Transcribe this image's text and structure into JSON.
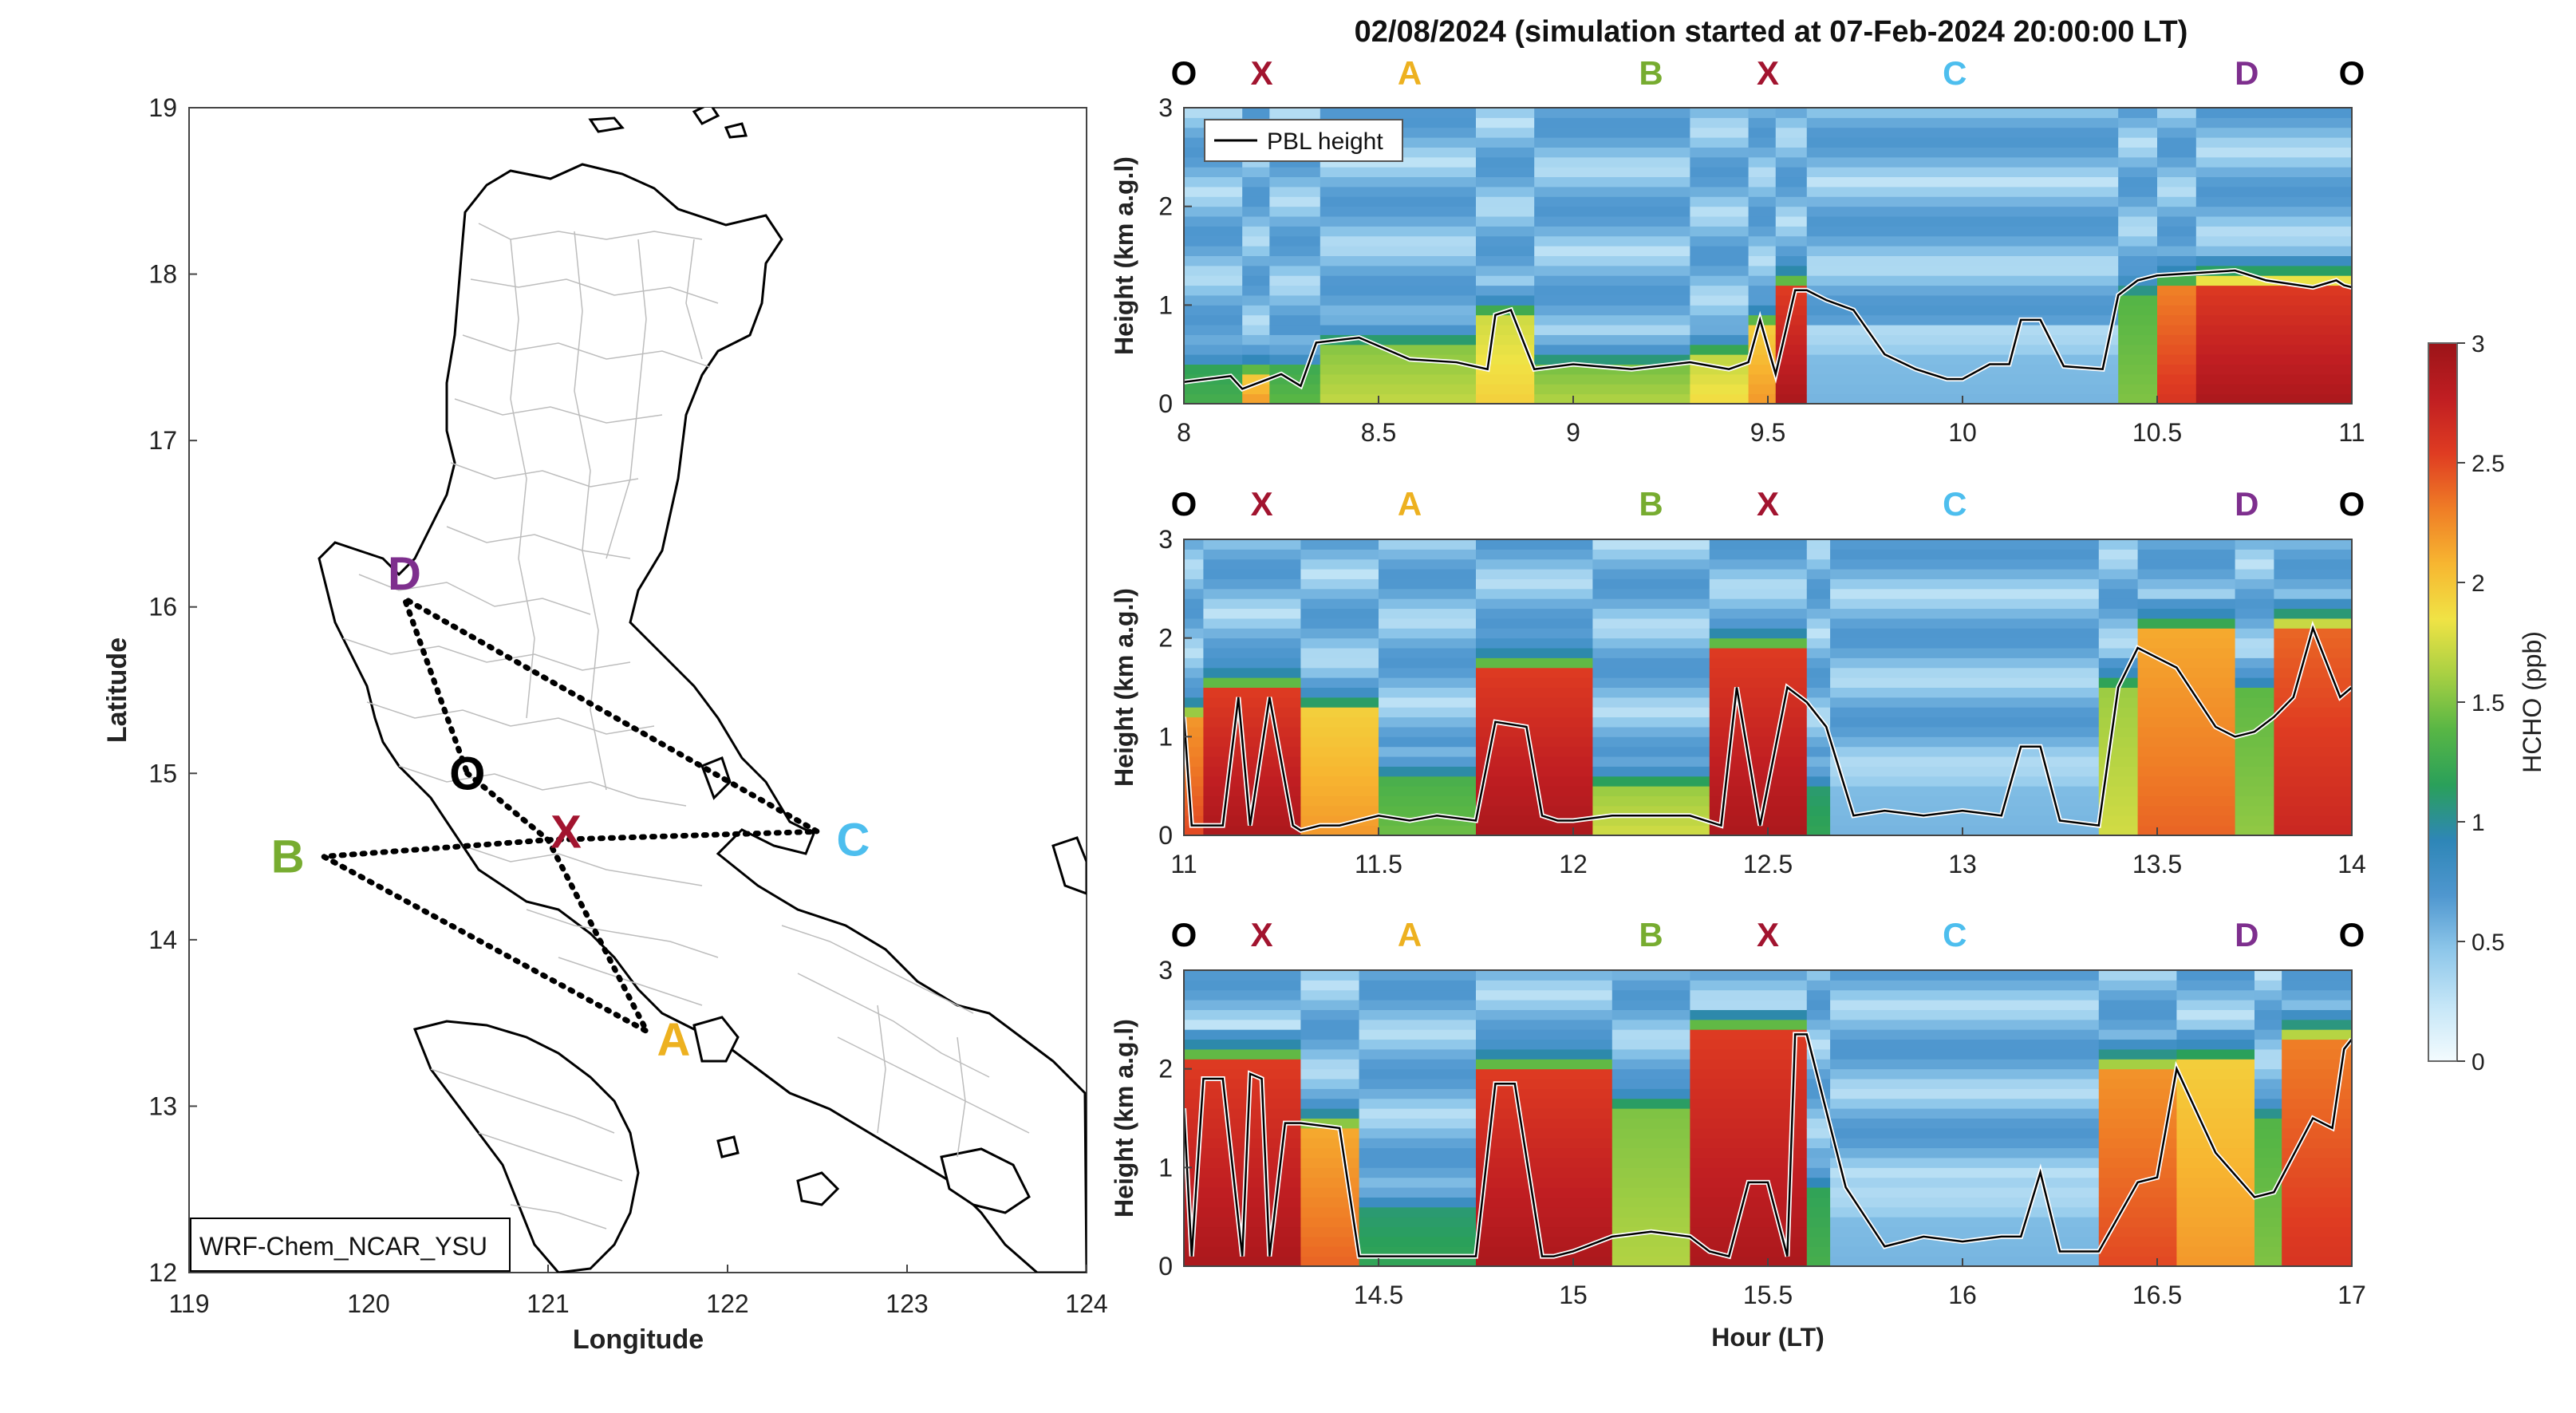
{
  "figure": {
    "title": "02/08/2024 (simulation started at 07-Feb-2024 20:00:00 LT)"
  },
  "chart_data": [
    {
      "type": "map",
      "xlabel": "Longitude",
      "ylabel": "Latitude",
      "xlim": [
        119,
        124
      ],
      "ylim": [
        12,
        19
      ],
      "xticks": [
        "119",
        "120",
        "121",
        "122",
        "123",
        "124"
      ],
      "yticks": [
        "12",
        "13",
        "14",
        "15",
        "16",
        "17",
        "18",
        "19"
      ],
      "model_label": "WRF-Chem_NCAR_YSU",
      "waypoints": [
        {
          "label": "O",
          "lon": 120.55,
          "lat": 15.0,
          "color": "#000000"
        },
        {
          "label": "X",
          "lon": 121.1,
          "lat": 14.65,
          "color": "#a2142f"
        },
        {
          "label": "A",
          "lon": 121.7,
          "lat": 13.4,
          "color": "#edb120"
        },
        {
          "label": "B",
          "lon": 119.55,
          "lat": 14.5,
          "color": "#77ac30"
        },
        {
          "label": "C",
          "lon": 122.7,
          "lat": 14.6,
          "color": "#4dbeee"
        },
        {
          "label": "D",
          "lon": 120.2,
          "lat": 16.2,
          "color": "#7e2f8e"
        }
      ],
      "flight_track": [
        {
          "lon": 120.55,
          "lat": 15.0
        },
        {
          "lon": 121.0,
          "lat": 14.6
        },
        {
          "lon": 121.55,
          "lat": 13.45
        },
        {
          "lon": 119.75,
          "lat": 14.5
        },
        {
          "lon": 121.0,
          "lat": 14.6
        },
        {
          "lon": 122.5,
          "lat": 14.65
        },
        {
          "lon": 120.2,
          "lat": 16.05
        },
        {
          "lon": 120.55,
          "lat": 15.0
        }
      ]
    },
    {
      "type": "heatmap",
      "xlim": [
        8,
        11
      ],
      "ylim": [
        0,
        3
      ],
      "ylabel": "Height (km a.g.l)",
      "xlabel": "",
      "xticks": [
        "8",
        "8.5",
        "9",
        "9.5",
        "10",
        "10.5",
        "11"
      ],
      "yticks": [
        "0",
        "1",
        "2",
        "3"
      ],
      "legend": "PBL height",
      "waypoint_labels": [
        {
          "label": "O",
          "x": 8.0
        },
        {
          "label": "X",
          "x": 8.2
        },
        {
          "label": "A",
          "x": 8.58
        },
        {
          "label": "B",
          "x": 9.2
        },
        {
          "label": "X",
          "x": 9.5
        },
        {
          "label": "C",
          "x": 9.98
        },
        {
          "label": "D",
          "x": 10.73
        },
        {
          "label": "O",
          "x": 11.0
        }
      ],
      "pbl_x": [
        8.0,
        8.12,
        8.15,
        8.25,
        8.3,
        8.34,
        8.45,
        8.58,
        8.7,
        8.78,
        8.8,
        8.84,
        8.9,
        9.0,
        9.15,
        9.3,
        9.4,
        9.45,
        9.48,
        9.52,
        9.57,
        9.6,
        9.65,
        9.72,
        9.8,
        9.88,
        9.96,
        10.0,
        10.07,
        10.12,
        10.15,
        10.2,
        10.26,
        10.36,
        10.4,
        10.45,
        10.5,
        10.7,
        10.78,
        10.9,
        10.96,
        10.98,
        11.0
      ],
      "pbl_y": [
        0.22,
        0.28,
        0.15,
        0.3,
        0.18,
        0.62,
        0.67,
        0.45,
        0.42,
        0.35,
        0.9,
        0.95,
        0.35,
        0.4,
        0.35,
        0.42,
        0.35,
        0.42,
        0.85,
        0.3,
        1.15,
        1.15,
        1.05,
        0.95,
        0.5,
        0.35,
        0.25,
        0.25,
        0.4,
        0.4,
        0.85,
        0.85,
        0.38,
        0.35,
        1.1,
        1.25,
        1.3,
        1.35,
        1.25,
        1.18,
        1.25,
        1.2,
        1.18
      ],
      "hcho_columns": [
        {
          "x0": 8.0,
          "x1": 8.15,
          "surface": 1.3,
          "top": 0.55,
          "depth": 0.35
        },
        {
          "x0": 8.15,
          "x1": 8.22,
          "surface": 2.2,
          "top": 0.5,
          "depth": 0.3
        },
        {
          "x0": 8.22,
          "x1": 8.35,
          "surface": 1.4,
          "top": 0.5,
          "depth": 0.35
        },
        {
          "x0": 8.35,
          "x1": 8.75,
          "surface": 1.7,
          "top": 0.45,
          "depth": 0.6
        },
        {
          "x0": 8.75,
          "x1": 8.9,
          "surface": 1.95,
          "top": 0.5,
          "depth": 0.9
        },
        {
          "x0": 8.9,
          "x1": 9.3,
          "surface": 1.65,
          "top": 0.45,
          "depth": 0.4
        },
        {
          "x0": 9.3,
          "x1": 9.45,
          "surface": 1.9,
          "top": 0.45,
          "depth": 0.5
        },
        {
          "x0": 9.45,
          "x1": 9.52,
          "surface": 2.2,
          "top": 0.5,
          "depth": 0.8
        },
        {
          "x0": 9.52,
          "x1": 9.6,
          "surface": 2.9,
          "top": 0.6,
          "depth": 1.15
        },
        {
          "x0": 9.6,
          "x1": 10.4,
          "surface": 0.55,
          "top": 0.3,
          "depth": 0.5
        },
        {
          "x0": 10.4,
          "x1": 10.5,
          "surface": 1.5,
          "top": 0.6,
          "depth": 1.1
        },
        {
          "x0": 10.5,
          "x1": 10.6,
          "surface": 2.6,
          "top": 0.6,
          "depth": 1.15
        },
        {
          "x0": 10.6,
          "x1": 11.0,
          "surface": 2.9,
          "top": 0.6,
          "depth": 1.2
        }
      ]
    },
    {
      "type": "heatmap",
      "xlim": [
        11,
        14
      ],
      "ylim": [
        0,
        3
      ],
      "ylabel": "Height (km a.g.l)",
      "xlabel": "",
      "xticks": [
        "11",
        "11.5",
        "12",
        "12.5",
        "13",
        "13.5",
        "14"
      ],
      "yticks": [
        "0",
        "1",
        "2",
        "3"
      ],
      "waypoint_labels": [
        {
          "label": "O",
          "x": 11.0
        },
        {
          "label": "X",
          "x": 11.2
        },
        {
          "label": "A",
          "x": 11.58
        },
        {
          "label": "B",
          "x": 12.2
        },
        {
          "label": "X",
          "x": 12.5
        },
        {
          "label": "C",
          "x": 12.98
        },
        {
          "label": "D",
          "x": 13.73
        },
        {
          "label": "O",
          "x": 14.0
        }
      ],
      "pbl_x": [
        11.0,
        11.02,
        11.1,
        11.14,
        11.17,
        11.22,
        11.28,
        11.3,
        11.35,
        11.4,
        11.45,
        11.5,
        11.58,
        11.65,
        11.75,
        11.8,
        11.88,
        11.92,
        11.96,
        12.0,
        12.1,
        12.2,
        12.3,
        12.38,
        12.42,
        12.48,
        12.55,
        12.6,
        12.65,
        12.72,
        12.8,
        12.9,
        13.0,
        13.1,
        13.15,
        13.2,
        13.25,
        13.35,
        13.4,
        13.45,
        13.55,
        13.65,
        13.7,
        13.75,
        13.8,
        13.85,
        13.9,
        13.97,
        14.0
      ],
      "pbl_y": [
        1.2,
        0.1,
        0.1,
        1.4,
        0.1,
        1.4,
        0.1,
        0.05,
        0.1,
        0.1,
        0.15,
        0.2,
        0.15,
        0.2,
        0.15,
        1.15,
        1.1,
        0.2,
        0.15,
        0.15,
        0.2,
        0.2,
        0.2,
        0.1,
        1.5,
        0.1,
        1.5,
        1.35,
        1.1,
        0.2,
        0.25,
        0.2,
        0.25,
        0.2,
        0.9,
        0.9,
        0.15,
        0.1,
        1.5,
        1.9,
        1.7,
        1.1,
        1.0,
        1.05,
        1.2,
        1.4,
        2.1,
        1.4,
        1.5
      ],
      "hcho_columns": [
        {
          "x0": 11.0,
          "x1": 11.05,
          "surface": 2.5,
          "top": 0.5,
          "depth": 1.2
        },
        {
          "x0": 11.05,
          "x1": 11.3,
          "surface": 2.9,
          "top": 0.6,
          "depth": 1.45
        },
        {
          "x0": 11.3,
          "x1": 11.5,
          "surface": 2.2,
          "top": 0.55,
          "depth": 1.25
        },
        {
          "x0": 11.5,
          "x1": 11.75,
          "surface": 1.45,
          "top": 0.45,
          "depth": 0.6
        },
        {
          "x0": 11.75,
          "x1": 12.05,
          "surface": 2.9,
          "top": 0.6,
          "depth": 1.65
        },
        {
          "x0": 12.05,
          "x1": 12.35,
          "surface": 1.75,
          "top": 0.5,
          "depth": 0.5
        },
        {
          "x0": 12.35,
          "x1": 12.6,
          "surface": 2.9,
          "top": 0.6,
          "depth": 1.85
        },
        {
          "x0": 12.6,
          "x1": 12.66,
          "surface": 1.2,
          "top": 0.5,
          "depth": 0.5
        },
        {
          "x0": 12.66,
          "x1": 13.35,
          "surface": 0.55,
          "top": 0.3,
          "depth": 0.5
        },
        {
          "x0": 13.35,
          "x1": 13.45,
          "surface": 1.75,
          "top": 0.6,
          "depth": 1.5
        },
        {
          "x0": 13.45,
          "x1": 13.7,
          "surface": 2.4,
          "top": 0.6,
          "depth": 2.05
        },
        {
          "x0": 13.7,
          "x1": 13.8,
          "surface": 1.55,
          "top": 0.55,
          "depth": 1.45
        },
        {
          "x0": 13.8,
          "x1": 14.0,
          "surface": 2.7,
          "top": 0.6,
          "depth": 2.1
        }
      ]
    },
    {
      "type": "heatmap",
      "xlim": [
        14,
        17
      ],
      "ylim": [
        0,
        3
      ],
      "ylabel": "Height (km a.g.l)",
      "xlabel": "Hour (LT)",
      "xticks": [
        "14.5",
        "15",
        "15.5",
        "16",
        "16.5",
        "17"
      ],
      "yticks": [
        "0",
        "1",
        "2",
        "3"
      ],
      "waypoint_labels": [
        {
          "label": "O",
          "x": 14.0
        },
        {
          "label": "X",
          "x": 14.2
        },
        {
          "label": "A",
          "x": 14.58
        },
        {
          "label": "B",
          "x": 15.2
        },
        {
          "label": "X",
          "x": 15.5
        },
        {
          "label": "C",
          "x": 15.98
        },
        {
          "label": "D",
          "x": 16.73
        },
        {
          "label": "O",
          "x": 17.0
        }
      ],
      "pbl_x": [
        14.0,
        14.02,
        14.05,
        14.1,
        14.15,
        14.17,
        14.2,
        14.22,
        14.26,
        14.3,
        14.4,
        14.45,
        14.75,
        14.8,
        14.85,
        14.92,
        14.95,
        15.0,
        15.1,
        15.2,
        15.3,
        15.35,
        15.4,
        15.45,
        15.5,
        15.55,
        15.57,
        15.6,
        15.7,
        15.8,
        15.9,
        16.0,
        16.1,
        16.15,
        16.2,
        16.25,
        16.35,
        16.45,
        16.5,
        16.55,
        16.65,
        16.75,
        16.8,
        16.9,
        16.95,
        16.98,
        17.0
      ],
      "pbl_y": [
        1.6,
        0.1,
        1.9,
        1.9,
        0.1,
        1.95,
        1.9,
        0.1,
        1.45,
        1.45,
        1.4,
        0.1,
        0.1,
        1.85,
        1.85,
        0.1,
        0.1,
        0.15,
        0.3,
        0.35,
        0.3,
        0.15,
        0.1,
        0.85,
        0.85,
        0.1,
        2.35,
        2.35,
        0.8,
        0.2,
        0.3,
        0.25,
        0.3,
        0.3,
        0.95,
        0.15,
        0.15,
        0.85,
        0.9,
        2.0,
        1.15,
        0.7,
        0.75,
        1.5,
        1.4,
        2.2,
        2.3
      ],
      "hcho_columns": [
        {
          "x0": 14.0,
          "x1": 14.3,
          "surface": 2.9,
          "top": 0.6,
          "depth": 2.05
        },
        {
          "x0": 14.3,
          "x1": 14.45,
          "surface": 2.4,
          "top": 0.55,
          "depth": 1.4
        },
        {
          "x0": 14.45,
          "x1": 14.75,
          "surface": 1.2,
          "top": 0.45,
          "depth": 0.6
        },
        {
          "x0": 14.75,
          "x1": 15.1,
          "surface": 2.9,
          "top": 0.6,
          "depth": 1.95
        },
        {
          "x0": 15.1,
          "x1": 15.3,
          "surface": 1.65,
          "top": 0.6,
          "depth": 1.6
        },
        {
          "x0": 15.3,
          "x1": 15.6,
          "surface": 2.9,
          "top": 0.6,
          "depth": 2.35
        },
        {
          "x0": 15.6,
          "x1": 15.66,
          "surface": 1.3,
          "top": 0.5,
          "depth": 0.8
        },
        {
          "x0": 15.66,
          "x1": 16.35,
          "surface": 0.55,
          "top": 0.3,
          "depth": 0.5
        },
        {
          "x0": 16.35,
          "x1": 16.55,
          "surface": 2.5,
          "top": 0.6,
          "depth": 2.0
        },
        {
          "x0": 16.55,
          "x1": 16.75,
          "surface": 2.2,
          "top": 0.6,
          "depth": 2.05
        },
        {
          "x0": 16.75,
          "x1": 16.82,
          "surface": 1.5,
          "top": 0.55,
          "depth": 1.5
        },
        {
          "x0": 16.82,
          "x1": 17.0,
          "surface": 2.6,
          "top": 0.6,
          "depth": 2.3
        }
      ]
    },
    {
      "type": "colorbar",
      "label": "HCHO (ppb)",
      "ylim": [
        0,
        3
      ],
      "ticks": [
        "0",
        "0.5",
        "1",
        "1.5",
        "2",
        "2.5",
        "3"
      ],
      "colormap": [
        "#f3fbfe",
        "#c5e6f7",
        "#8ec7ea",
        "#4f97cf",
        "#2e86b7",
        "#2aa05a",
        "#58b645",
        "#a8d043",
        "#f0e345",
        "#f7b631",
        "#ef7d26",
        "#df3c22",
        "#c01e22",
        "#9b1418"
      ]
    }
  ]
}
